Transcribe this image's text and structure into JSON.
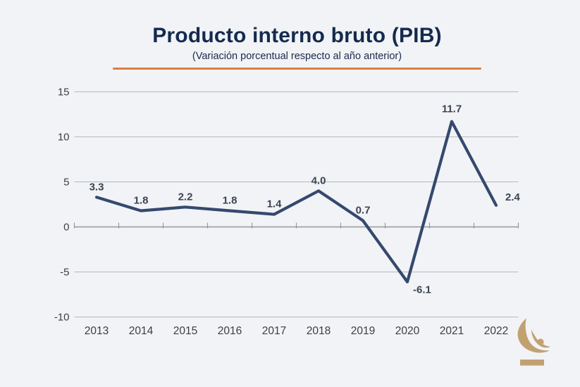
{
  "header": {
    "title": "Producto interno bruto (PIB)",
    "subtitle": "(Variación porcentual respecto al año anterior)"
  },
  "colors": {
    "background": "#f1f3f6",
    "title_text": "#152a4e",
    "accent_rule": "#dd7e3f",
    "line": "#35496e",
    "data_label": "#3d4452",
    "axis_text": "#3c4043",
    "gridline": "#b6b9bc",
    "zero_axis": "#939598",
    "logo_gold": "#c2a171"
  },
  "chart_data": {
    "type": "line",
    "title": "Producto interno bruto (PIB)",
    "subtitle": "(Variación porcentual respecto al año anterior)",
    "xlabel": "",
    "ylabel": "",
    "categories": [
      "2013",
      "2014",
      "2015",
      "2016",
      "2017",
      "2018",
      "2019",
      "2020",
      "2021",
      "2022"
    ],
    "values": [
      3.3,
      1.8,
      2.2,
      1.8,
      1.4,
      4.0,
      0.7,
      -6.1,
      11.7,
      2.4
    ],
    "point_labels": [
      "3.3",
      "1.8",
      "2.2",
      "1.8",
      "1.4",
      "4.0",
      "0.7",
      "-6.1",
      "11.7",
      "2.4"
    ],
    "ylim": [
      -10,
      15
    ],
    "yticks": [
      15,
      10,
      5,
      0,
      -5,
      -10
    ],
    "ytick_labels": [
      "15",
      "10",
      "5",
      "0",
      "-5",
      "-10"
    ],
    "grid": true,
    "legend": false,
    "label_offsets": {
      "7": {
        "dx": 8,
        "dy": 16,
        "anchor": "start"
      },
      "8": {
        "dx": 0,
        "dy": -13,
        "anchor": "middle"
      },
      "9": {
        "dx": 13,
        "dy": -7,
        "anchor": "start"
      }
    }
  },
  "logo": {
    "name": "gold-crescent-emblem"
  }
}
